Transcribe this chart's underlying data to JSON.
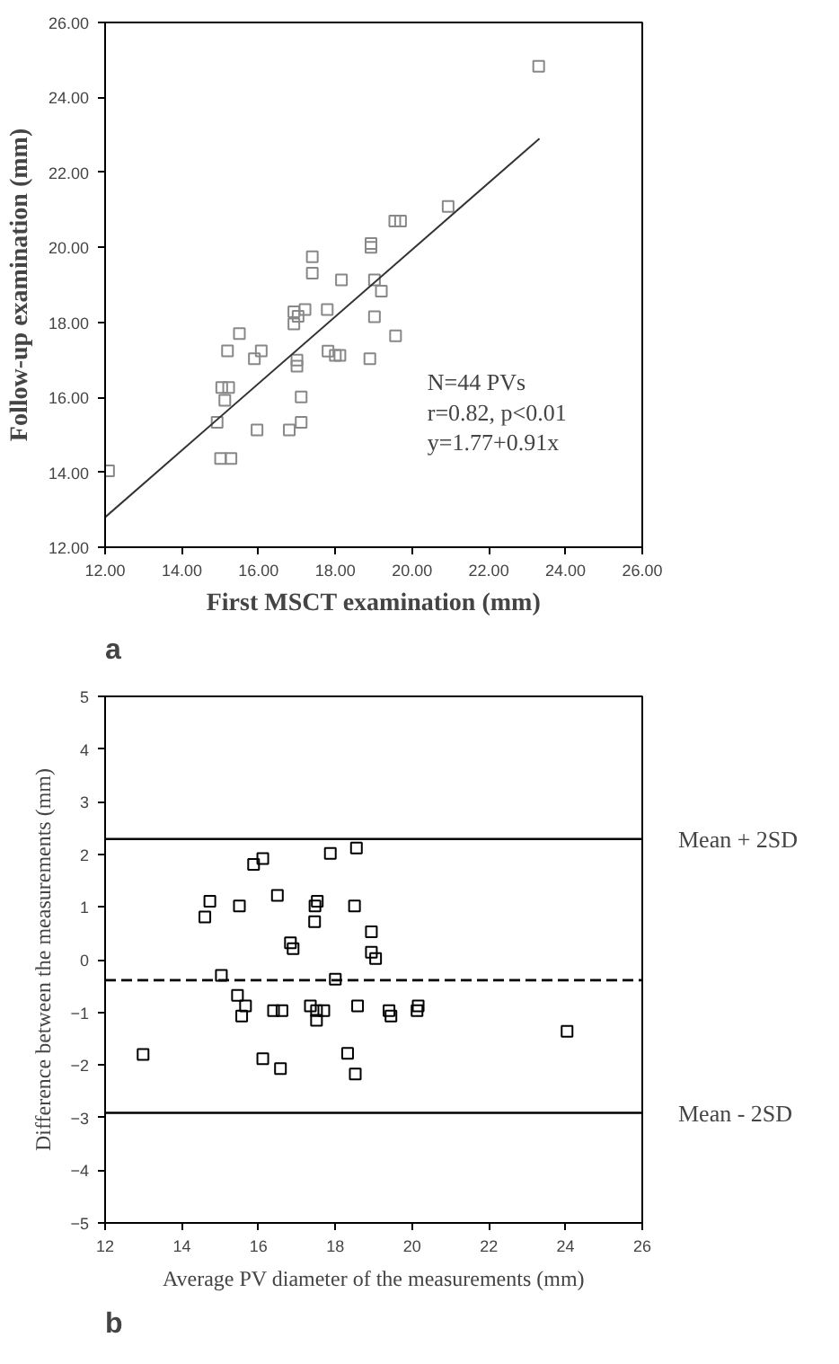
{
  "chart_data": [
    {
      "type": "scatter",
      "title": "a",
      "xlabel": "First MSCT examination (mm)",
      "ylabel": "Follow-up examination (mm)",
      "xlim": [
        12,
        26
      ],
      "ylim": [
        12,
        26
      ],
      "xticks": [
        {
          "value": 12,
          "label": "12.00"
        },
        {
          "value": 14,
          "label": "14.00"
        },
        {
          "value": 16,
          "label": "16.00"
        },
        {
          "value": 18,
          "label": "18.00"
        },
        {
          "value": 20,
          "label": "20.00"
        },
        {
          "value": 22,
          "label": "22.00"
        },
        {
          "value": 24,
          "label": "24.00"
        },
        {
          "value": 26,
          "label": "26.00"
        }
      ],
      "yticks": [
        {
          "value": 12,
          "label": "12.00"
        },
        {
          "value": 14,
          "label": "14.00"
        },
        {
          "value": 16,
          "label": "16.00"
        },
        {
          "value": 18,
          "label": "18.00"
        },
        {
          "value": 20,
          "label": "20.00"
        },
        {
          "value": 22,
          "label": "22.00"
        },
        {
          "value": 24,
          "label": "24.00"
        },
        {
          "value": 26,
          "label": "26.00"
        }
      ],
      "grid": false,
      "marker": "square",
      "annotations": [
        "N=44 PVs",
        "r=0.82, p<0.01",
        "y=1.77+0.91x"
      ],
      "series": [
        {
          "color": "#888888",
          "x": [
            23.3,
            20.94,
            19.55,
            19.7,
            18.93,
            18.93,
            17.4,
            17.4,
            18.16,
            19.02,
            19.2,
            17.21,
            17.79,
            16.92,
            17.03,
            16.92,
            19.02,
            19.57,
            15.5,
            15.19,
            16.07,
            15.89,
            17.81,
            18.0,
            18.12,
            18.9,
            17.0,
            17.0,
            15.04,
            15.22,
            15.12,
            17.11,
            14.92,
            15.96,
            16.8,
            17.11,
            15.01,
            15.28,
            12.09
          ],
          "values": [
            24.83,
            21.09,
            20.7,
            20.7,
            20.1,
            20.0,
            19.75,
            19.31,
            19.13,
            19.13,
            18.83,
            18.34,
            18.34,
            18.28,
            18.16,
            17.96,
            18.15,
            17.64,
            17.7,
            17.24,
            17.24,
            17.03,
            17.23,
            17.12,
            17.12,
            17.03,
            16.99,
            16.83,
            16.26,
            16.26,
            15.92,
            16.01,
            15.33,
            15.13,
            15.13,
            15.33,
            14.37,
            14.37,
            14.04
          ]
        },
        {
          "type": "line",
          "color": "#333333",
          "marker": "none",
          "x": [
            12,
            23.32
          ],
          "values": [
            12.8,
            22.9
          ]
        }
      ]
    },
    {
      "type": "scatter",
      "title": "b",
      "xlabel": "Average PV diameter of the measurements (mm)",
      "ylabel": "Difference between the measurements (mm)",
      "xlim": [
        12,
        26
      ],
      "ylim": [
        -5,
        5
      ],
      "xticks": [
        12,
        14,
        16,
        18,
        20,
        22,
        24,
        26
      ],
      "yticks": [
        -5,
        -4,
        -3,
        -2,
        -1,
        0,
        1,
        2,
        3,
        4,
        5
      ],
      "grid": false,
      "marker": "square",
      "ref_lines": [
        {
          "axis": "y",
          "value": 2.29,
          "label": "Mean + 2SD",
          "color": "#000000",
          "line_style": "solid"
        },
        {
          "axis": "y",
          "value": -0.39,
          "color": "#000000",
          "line_style": "dashed"
        },
        {
          "axis": "y",
          "value": -2.91,
          "label": "Mean - 2SD",
          "color": "#000000",
          "line_style": "solid"
        }
      ],
      "series": [
        {
          "color": "#000000",
          "x": [
            14.6,
            14.73,
            15.5,
            15.87,
            16.11,
            16.49,
            16.83,
            16.9,
            17.87,
            18.55,
            17.46,
            17.53,
            17.47,
            18.5,
            18.94,
            18.94,
            19.05,
            15.03,
            18.0,
            15.45,
            15.66,
            15.56,
            16.39,
            16.61,
            17.35,
            17.51,
            17.7,
            17.51,
            18.58,
            19.4,
            19.45,
            20.13,
            20.16,
            12.99,
            16.11,
            16.57,
            18.32,
            18.52,
            24.04
          ],
          "values": [
            0.81,
            1.11,
            1.02,
            1.81,
            1.92,
            1.22,
            0.32,
            0.21,
            2.02,
            2.12,
            0.72,
            1.11,
            1.02,
            1.02,
            0.53,
            0.14,
            0.02,
            -0.3,
            -0.37,
            -0.68,
            -0.88,
            -1.07,
            -0.97,
            -0.97,
            -0.88,
            -0.97,
            -0.97,
            -1.15,
            -0.88,
            -0.97,
            -1.07,
            -0.97,
            -0.88,
            -1.8,
            -1.88,
            -2.07,
            -1.78,
            -2.17,
            -1.36
          ]
        }
      ]
    }
  ]
}
